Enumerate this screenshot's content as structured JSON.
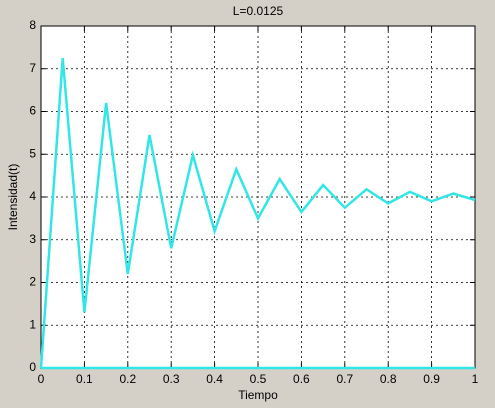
{
  "chart_data": {
    "type": "line",
    "title": "L=0.0125",
    "x_label": "Tiempo",
    "y_label": "Intensidad(t)",
    "series": [
      {
        "color": "#33e6e6",
        "x": [
          0,
          0.05,
          0.1,
          0.15,
          0.2,
          0.25,
          0.3,
          0.35,
          0.4,
          0.45,
          0.5,
          0.55,
          0.6,
          0.65,
          0.7,
          0.75,
          0.8,
          0.85,
          0.9,
          0.95,
          1
        ],
        "values": [
          0,
          7.25,
          1.3,
          6.2,
          2.2,
          5.45,
          2.8,
          4.98,
          3.2,
          4.65,
          3.5,
          4.42,
          3.65,
          4.28,
          3.75,
          4.18,
          3.85,
          4.12,
          3.9,
          4.08,
          3.93
        ]
      },
      {
        "color": "#33e6e6",
        "x": [
          0,
          1
        ],
        "values": [
          0,
          0
        ]
      }
    ],
    "xlim": [
      0,
      1
    ],
    "xticks": [
      0,
      0.1,
      0.2,
      0.3,
      0.4,
      0.5,
      0.6,
      0.7,
      0.8,
      0.9,
      1
    ],
    "ylim": [
      0,
      8
    ],
    "yticks": [
      0,
      1,
      2,
      3,
      4,
      5,
      6,
      7,
      8
    ],
    "grid": true
  }
}
